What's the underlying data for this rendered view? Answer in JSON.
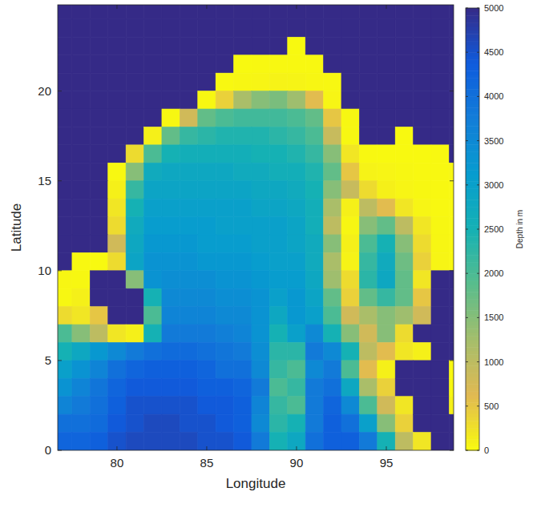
{
  "chart_data": {
    "type": "heatmap",
    "xlabel": "Longitude",
    "ylabel": "Latitude",
    "xlim": [
      76.7,
      98.75
    ],
    "ylim": [
      0,
      24.8
    ],
    "xticks": [
      80,
      85,
      90,
      95
    ],
    "yticks": [
      0,
      5,
      10,
      15,
      20
    ],
    "x": [
      77,
      78,
      79,
      80,
      81,
      82,
      83,
      84,
      85,
      86,
      87,
      88,
      89,
      90,
      91,
      92,
      93,
      94,
      95,
      96,
      97,
      98,
      99
    ],
    "y": [
      24.5,
      23.5,
      22.5,
      21.5,
      20.5,
      19.5,
      18.5,
      17.5,
      16.5,
      15.5,
      14.5,
      13.5,
      12.5,
      11.5,
      10.5,
      9.5,
      8.5,
      7.5,
      6.5,
      5.5,
      4.5,
      3.5,
      2.5,
      1.5,
      0.5
    ],
    "values": [
      [
        5000,
        5000,
        5000,
        5000,
        5000,
        5000,
        5000,
        5000,
        5000,
        5000,
        5000,
        5000,
        5000,
        5000,
        5000,
        5000,
        5000,
        5000,
        5000,
        5000,
        5000,
        5000,
        5000
      ],
      [
        5000,
        5000,
        5000,
        5000,
        5000,
        5000,
        5000,
        5000,
        5000,
        5000,
        5000,
        5000,
        5000,
        5000,
        5000,
        5000,
        5000,
        5000,
        5000,
        5000,
        5000,
        5000,
        5000
      ],
      [
        5000,
        5000,
        5000,
        5000,
        5000,
        5000,
        5000,
        5000,
        5000,
        5000,
        5000,
        5000,
        5000,
        20,
        5000,
        5000,
        5000,
        5000,
        5000,
        5000,
        5000,
        5000,
        5000
      ],
      [
        5000,
        5000,
        5000,
        5000,
        5000,
        5000,
        5000,
        5000,
        5000,
        5000,
        20,
        30,
        30,
        30,
        30,
        5000,
        5000,
        5000,
        5000,
        5000,
        5000,
        5000,
        5000
      ],
      [
        5000,
        5000,
        5000,
        5000,
        5000,
        5000,
        5000,
        5000,
        5000,
        30,
        50,
        60,
        80,
        70,
        50,
        40,
        5000,
        5000,
        5000,
        5000,
        5000,
        5000,
        5000
      ],
      [
        5000,
        5000,
        5000,
        5000,
        5000,
        5000,
        5000,
        5000,
        40,
        400,
        1200,
        1500,
        1600,
        1300,
        600,
        60,
        5000,
        5000,
        5000,
        5000,
        5000,
        5000,
        5000
      ],
      [
        5000,
        5000,
        5000,
        5000,
        5000,
        5000,
        40,
        800,
        1800,
        2000,
        2100,
        2100,
        2100,
        2000,
        1800,
        500,
        40,
        5000,
        5000,
        5000,
        5000,
        5000,
        5000
      ],
      [
        5000,
        5000,
        5000,
        5000,
        5000,
        100,
        1800,
        2200,
        2300,
        2400,
        2400,
        2400,
        2300,
        2200,
        2000,
        900,
        40,
        5000,
        5000,
        20,
        5000,
        5000,
        5000
      ],
      [
        5000,
        5000,
        5000,
        5000,
        300,
        2000,
        2500,
        2600,
        2600,
        2600,
        2600,
        2500,
        2500,
        2400,
        2200,
        1500,
        200,
        30,
        20,
        20,
        20,
        30,
        5000
      ],
      [
        5000,
        5000,
        5000,
        30,
        1500,
        2700,
        2800,
        2800,
        2800,
        2800,
        2700,
        2700,
        2600,
        2600,
        2400,
        1800,
        500,
        80,
        60,
        40,
        30,
        30,
        40
      ],
      [
        5000,
        5000,
        5000,
        100,
        2200,
        2900,
        2900,
        2900,
        2900,
        2900,
        2900,
        2800,
        2800,
        2700,
        2500,
        1500,
        900,
        300,
        100,
        60,
        40,
        30,
        30
      ],
      [
        5000,
        5000,
        5000,
        200,
        2500,
        3000,
        3000,
        3000,
        3000,
        3000,
        3000,
        2900,
        2900,
        2800,
        2600,
        1200,
        100,
        1000,
        600,
        200,
        60,
        30,
        30
      ],
      [
        5000,
        5000,
        5000,
        300,
        2700,
        3100,
        3100,
        3100,
        3100,
        3000,
        3000,
        3000,
        3000,
        2900,
        2600,
        1000,
        50,
        1500,
        1800,
        1000,
        200,
        40,
        30
      ],
      [
        5000,
        5000,
        5000,
        800,
        2800,
        3200,
        3200,
        3200,
        3100,
        3100,
        3100,
        3000,
        3000,
        2900,
        2700,
        1500,
        100,
        2000,
        2500,
        1500,
        300,
        50,
        30
      ],
      [
        5000,
        30,
        20,
        300,
        2900,
        3300,
        3300,
        3300,
        3200,
        3200,
        3200,
        3100,
        3000,
        3000,
        2700,
        1200,
        80,
        2200,
        2700,
        1700,
        400,
        60,
        30
      ],
      [
        50,
        40,
        5000,
        5000,
        1500,
        3300,
        3400,
        3400,
        3400,
        3300,
        3300,
        3200,
        3100,
        3100,
        2800,
        1300,
        300,
        2300,
        2800,
        1800,
        200,
        5000,
        5000
      ],
      [
        40,
        100,
        5000,
        5000,
        5000,
        2500,
        3500,
        3500,
        3500,
        3400,
        3400,
        3300,
        3000,
        3200,
        2900,
        1800,
        400,
        1800,
        2200,
        1800,
        500,
        5000,
        5000
      ],
      [
        300,
        200,
        500,
        5000,
        5000,
        2000,
        3600,
        3600,
        3600,
        3500,
        3500,
        3300,
        2800,
        3200,
        3000,
        2000,
        800,
        1200,
        1500,
        1300,
        800,
        5000,
        5000
      ],
      [
        2000,
        1500,
        1000,
        200,
        100,
        2500,
        3800,
        3800,
        3800,
        3700,
        3600,
        3300,
        2500,
        3000,
        3500,
        2500,
        1500,
        800,
        1500,
        300,
        5000,
        5000,
        5000
      ],
      [
        2500,
        2800,
        3200,
        3500,
        3800,
        4000,
        4100,
        4100,
        4000,
        3900,
        3800,
        3400,
        2300,
        2300,
        3800,
        3500,
        2500,
        1000,
        600,
        200,
        100,
        5000,
        5000
      ],
      [
        3000,
        3300,
        3600,
        4000,
        4200,
        4300,
        4300,
        4300,
        4200,
        4000,
        4000,
        3500,
        2200,
        2000,
        3500,
        3800,
        2000,
        600,
        100,
        5000,
        5000,
        5000,
        30
      ],
      [
        3300,
        3600,
        3900,
        4200,
        4400,
        4400,
        4400,
        4400,
        4300,
        4300,
        4200,
        3800,
        2000,
        2200,
        3800,
        4000,
        2800,
        1200,
        400,
        5000,
        5000,
        5000,
        40
      ],
      [
        3600,
        3800,
        4000,
        4300,
        4500,
        4500,
        4500,
        4500,
        4400,
        4400,
        4300,
        3600,
        2200,
        2000,
        3800,
        4200,
        3500,
        2000,
        800,
        200,
        5000,
        5000,
        100
      ],
      [
        4000,
        4000,
        4100,
        4400,
        4500,
        4600,
        4600,
        4500,
        4500,
        4400,
        4300,
        3500,
        2300,
        2500,
        3800,
        4300,
        4000,
        3000,
        1500,
        400,
        5000,
        5000,
        5000
      ],
      [
        4200,
        4200,
        4300,
        4500,
        4600,
        4600,
        4600,
        4600,
        4500,
        4500,
        4400,
        3800,
        2500,
        2800,
        4000,
        4300,
        4300,
        3800,
        2500,
        1000,
        200,
        5000,
        5000
      ]
    ],
    "colorbar_label": "Depth in m",
    "colorbar_lim": [
      0,
      5000
    ],
    "colorbar_ticks": [
      0,
      500,
      1000,
      1500,
      2000,
      2500,
      3000,
      3500,
      4000,
      4500,
      5000
    ]
  }
}
